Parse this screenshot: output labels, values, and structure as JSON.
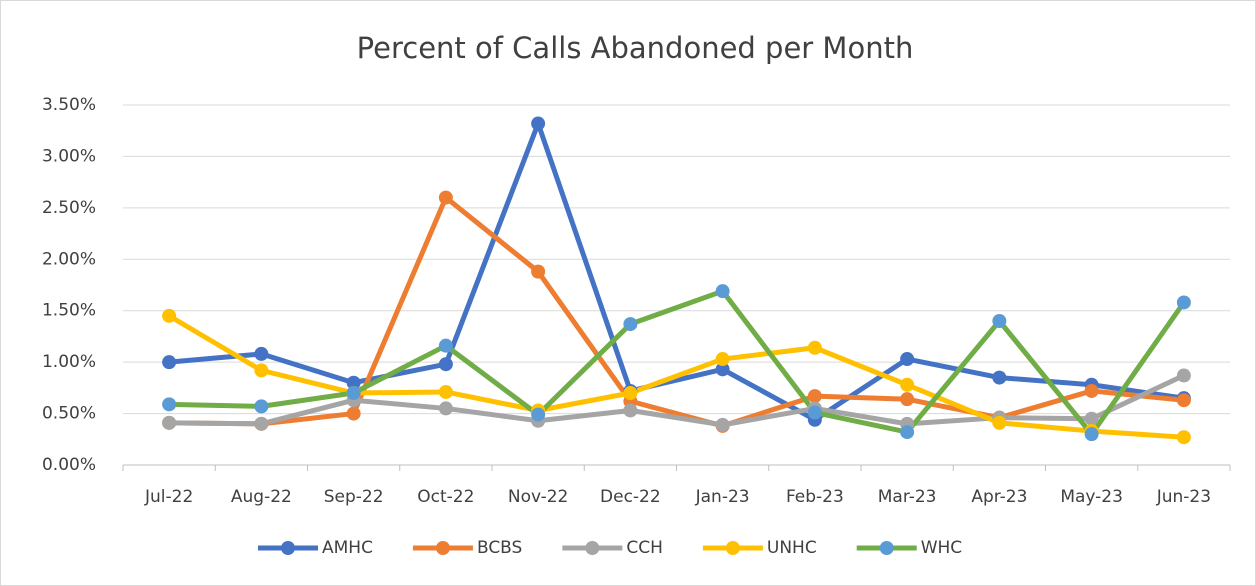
{
  "chart_data": {
    "type": "line",
    "title": "Percent of Calls Abandoned per Month",
    "categories": [
      "Jul-22",
      "Aug-22",
      "Sep-22",
      "Oct-22",
      "Nov-22",
      "Dec-22",
      "Jan-23",
      "Feb-23",
      "Mar-23",
      "Apr-23",
      "May-23",
      "Jun-23"
    ],
    "series": [
      {
        "name": "AMHC",
        "color": "#4472c4",
        "marker_color": "#4472c4",
        "values": [
          1.0,
          1.08,
          0.8,
          0.98,
          3.32,
          0.72,
          0.93,
          0.44,
          1.03,
          0.85,
          0.78,
          0.65
        ]
      },
      {
        "name": "BCBS",
        "color": "#ed7d31",
        "marker_color": "#ed7d31",
        "values": [
          0.41,
          0.4,
          0.5,
          2.6,
          1.88,
          0.62,
          0.38,
          0.67,
          0.64,
          0.46,
          0.72,
          0.63
        ]
      },
      {
        "name": "CCH",
        "color": "#a5a5a5",
        "marker_color": "#a5a5a5",
        "values": [
          0.41,
          0.4,
          0.63,
          0.55,
          0.43,
          0.53,
          0.39,
          0.55,
          0.4,
          0.46,
          0.45,
          0.87
        ]
      },
      {
        "name": "UNHC",
        "color": "#ffc000",
        "marker_color": "#ffc000",
        "values": [
          1.45,
          0.92,
          0.7,
          0.71,
          0.53,
          0.7,
          1.03,
          1.14,
          0.78,
          0.41,
          0.33,
          0.27
        ]
      },
      {
        "name": "WHC",
        "color": "#70ad47",
        "marker_color": "#5b9bd5",
        "values": [
          0.59,
          0.57,
          0.7,
          1.16,
          0.49,
          1.37,
          1.69,
          0.51,
          0.32,
          1.4,
          0.3,
          1.58
        ]
      }
    ],
    "ylim": [
      0,
      3.5
    ],
    "yticks": [
      {
        "value": 0,
        "label": "0.00%"
      },
      {
        "value": 0.5,
        "label": "0.50%"
      },
      {
        "value": 1,
        "label": "1.00%"
      },
      {
        "value": 1.5,
        "label": "1.50%"
      },
      {
        "value": 2,
        "label": "2.00%"
      },
      {
        "value": 2.5,
        "label": "2.50%"
      },
      {
        "value": 3,
        "label": "3.00%"
      },
      {
        "value": 3.5,
        "label": "3.50%"
      }
    ],
    "grid": true,
    "legend": "bottom"
  }
}
